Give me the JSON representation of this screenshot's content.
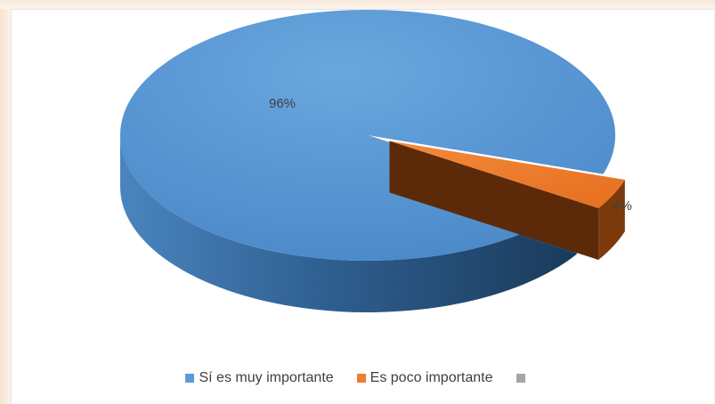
{
  "chart_data": {
    "type": "pie",
    "title": "",
    "style": "3d-exploded",
    "slices": [
      {
        "name": "Sí es muy importante",
        "value": 96,
        "label": "96%",
        "color": "#5b9bd5"
      },
      {
        "name": "Es poco importante",
        "value": 4,
        "label": "4%",
        "color": "#ed7d31"
      },
      {
        "name": "",
        "value": 0,
        "label": "",
        "color": "#a5a5a5"
      }
    ],
    "legend_position": "bottom"
  }
}
